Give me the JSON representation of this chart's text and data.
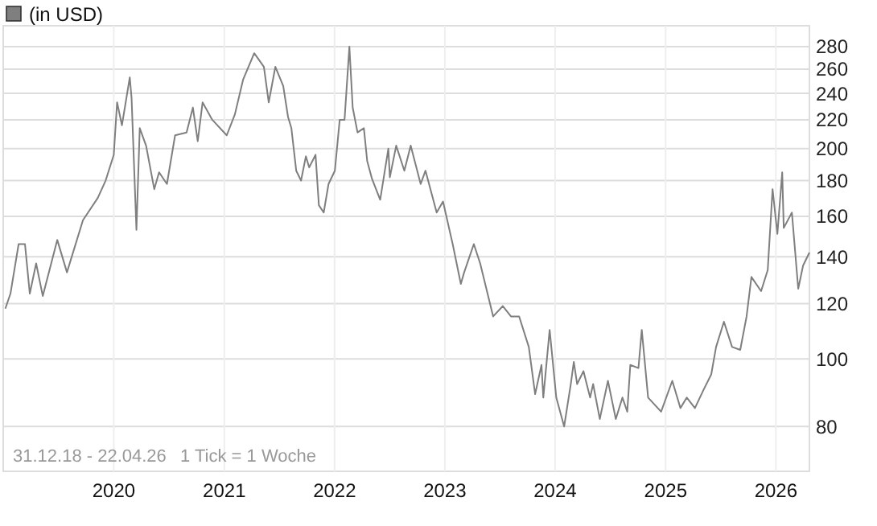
{
  "chart_data": {
    "type": "line",
    "log": true,
    "grid": true,
    "legend": "top left",
    "tick_labels": true,
    "annotations": [
      "31.12.18 - 22.04.26",
      "1 Tick = 1 Woche"
    ],
    "xlim": [
      "2018-12-31",
      "2026-04-22"
    ],
    "xticks": [
      {
        "value": "2020-01-01",
        "label": "2020"
      },
      {
        "value": "2021-01-01",
        "label": "2021"
      },
      {
        "value": "2022-01-01",
        "label": "2022"
      },
      {
        "value": "2023-01-01",
        "label": "2023"
      },
      {
        "value": "2024-01-01",
        "label": "2024"
      },
      {
        "value": "2025-01-01",
        "label": "2025"
      },
      {
        "value": "2026-01-01",
        "label": "2026"
      }
    ],
    "ylim": [
      69,
      300
    ],
    "yticks": [
      80,
      100,
      120,
      140,
      160,
      180,
      200,
      220,
      240,
      260,
      280
    ],
    "series": [
      {
        "name": "(in USD)",
        "color": "#7f7f7f",
        "x": [
          "2019-01-07",
          "2019-01-24",
          "2019-02-20",
          "2019-03-13",
          "2019-03-29",
          "2019-04-19",
          "2019-05-11",
          "2019-06-28",
          "2019-07-30",
          "2019-09-21",
          "2019-11-09",
          "2019-12-05",
          "2020-01-01",
          "2020-01-12",
          "2020-01-28",
          "2020-02-23",
          "2020-02-29",
          "2020-03-16",
          "2020-03-27",
          "2020-04-17",
          "2020-05-14",
          "2020-05-30",
          "2020-06-25",
          "2020-07-22",
          "2020-08-29",
          "2020-09-19",
          "2020-10-05",
          "2020-10-21",
          "2020-11-22",
          "2021-01-09",
          "2021-02-05",
          "2021-03-04",
          "2021-04-10",
          "2021-05-12",
          "2021-05-28",
          "2021-06-19",
          "2021-07-15",
          "2021-07-31",
          "2021-08-11",
          "2021-08-27",
          "2021-09-12",
          "2021-09-28",
          "2021-10-09",
          "2021-10-30",
          "2021-11-10",
          "2021-11-26",
          "2021-12-12",
          "2022-01-02",
          "2022-01-18",
          "2022-02-03",
          "2022-02-19",
          "2022-03-02",
          "2022-03-18",
          "2022-04-08",
          "2022-04-19",
          "2022-05-05",
          "2022-06-01",
          "2022-06-28",
          "2022-07-03",
          "2022-07-24",
          "2022-08-20",
          "2022-09-10",
          "2022-10-13",
          "2022-10-29",
          "2022-12-05",
          "2022-12-26",
          "2023-01-27",
          "2023-02-23",
          "2023-03-06",
          "2023-04-07",
          "2023-04-28",
          "2023-06-10",
          "2023-07-12",
          "2023-08-08",
          "2023-09-04",
          "2023-10-06",
          "2023-10-27",
          "2023-11-17",
          "2023-11-23",
          "2023-12-14",
          "2024-01-05",
          "2024-01-31",
          "2024-02-22",
          "2024-03-03",
          "2024-03-14",
          "2024-04-04",
          "2024-04-26",
          "2024-05-06",
          "2024-05-28",
          "2024-06-24",
          "2024-07-20",
          "2024-08-11",
          "2024-08-27",
          "2024-09-06",
          "2024-10-03",
          "2024-10-14",
          "2024-11-04",
          "2024-12-17",
          "2025-01-23",
          "2025-02-19",
          "2025-03-12",
          "2025-04-08",
          "2025-05-05",
          "2025-06-01",
          "2025-06-17",
          "2025-07-13",
          "2025-08-09",
          "2025-09-05",
          "2025-09-26",
          "2025-10-12",
          "2025-11-13",
          "2025-12-05",
          "2025-12-21",
          "2026-01-06",
          "2026-01-22",
          "2026-01-27",
          "2026-02-23",
          "2026-03-16",
          "2026-04-01",
          "2026-04-22"
        ],
        "values": [
          118,
          124,
          146,
          146,
          124,
          137,
          123,
          148,
          133,
          158,
          170,
          180,
          196,
          233,
          216,
          253,
          236,
          153,
          214,
          202,
          175,
          185,
          178,
          209,
          211,
          229,
          205,
          233,
          220,
          209,
          224,
          251,
          274,
          262,
          233,
          262,
          246,
          222,
          214,
          186,
          180,
          195,
          188,
          196,
          166,
          162,
          178,
          186,
          220,
          220,
          280,
          229,
          211,
          214,
          192,
          181,
          169,
          200,
          182,
          202,
          186,
          202,
          178,
          186,
          162,
          168,
          146,
          128,
          133,
          146,
          137,
          115,
          119,
          115,
          115,
          104,
          89,
          98,
          88,
          110,
          88,
          80,
          92,
          99,
          92,
          96,
          88,
          92,
          82,
          93,
          82,
          88,
          84,
          98,
          97,
          110,
          88,
          84,
          93,
          85,
          88,
          85,
          90,
          95,
          104,
          113,
          104,
          103,
          115,
          131,
          125,
          134,
          175,
          151,
          185,
          154,
          162,
          126,
          136,
          142
        ]
      }
    ]
  }
}
